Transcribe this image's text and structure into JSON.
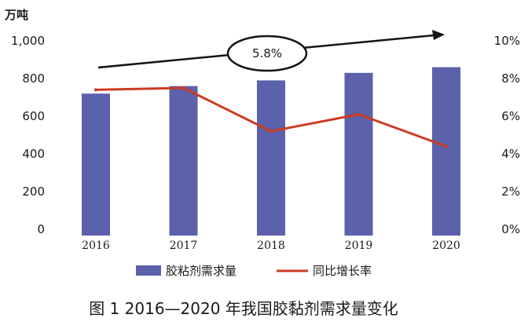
{
  "chart_data": {
    "type": "bar",
    "unit_label": "万吨",
    "categories": [
      "2016",
      "2017",
      "2018",
      "2019",
      "2020"
    ],
    "series": [
      {
        "name": "胶粘剂需求量",
        "type": "bar",
        "axis": "left",
        "values": [
          720,
          760,
          790,
          830,
          860
        ],
        "color": "#5b61ab"
      },
      {
        "name": "同比增长率",
        "type": "line",
        "axis": "right",
        "values": [
          7.4,
          7.5,
          5.2,
          6.1,
          4.4
        ],
        "color": "#cc3b22"
      }
    ],
    "y_left": {
      "min": 0,
      "max": 1000,
      "ticks": [
        0,
        200,
        400,
        600,
        800,
        1000
      ],
      "tick_labels": [
        "0",
        "200",
        "400",
        "600",
        "800",
        "1,000"
      ]
    },
    "y_right": {
      "min": 0,
      "max": 10,
      "ticks": [
        0,
        2,
        4,
        6,
        8,
        10
      ],
      "tick_labels": [
        "0%",
        "2%",
        "4%",
        "6%",
        "8%",
        "10%"
      ]
    },
    "annotation": {
      "text": "5.8%"
    },
    "legend": {
      "placement": "bottom"
    },
    "grid": false,
    "caption": "图 1  2016—2020 年我国胶黏剂需求量变化"
  }
}
